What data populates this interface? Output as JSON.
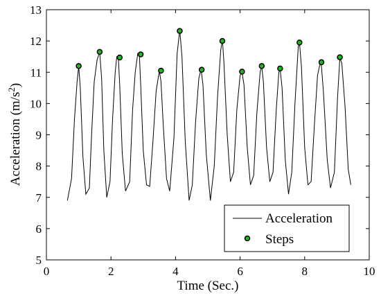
{
  "chart_data": {
    "type": "line",
    "xlabel": "Time (Sec.)",
    "ylabel_main": "Acceleration (m/s",
    "ylabel_sup": "2",
    "ylabel_close": ")",
    "xlim": [
      0,
      10
    ],
    "ylim": [
      5,
      13
    ],
    "xticks": [
      0,
      2,
      4,
      6,
      8,
      10
    ],
    "yticks": [
      5,
      6,
      7,
      8,
      9,
      10,
      11,
      12,
      13
    ],
    "grid": false,
    "legend_position": "bottom-right",
    "colors": {
      "line": "#000000",
      "marker_fill": "#1fb81f",
      "marker_edge": "#000000"
    },
    "series": [
      {
        "name": "Acceleration",
        "kind": "line",
        "x": [
          0.65,
          0.78,
          0.87,
          0.95,
          1.0,
          1.05,
          1.13,
          1.22,
          1.33,
          1.4,
          1.48,
          1.57,
          1.65,
          1.71,
          1.78,
          1.87,
          1.97,
          2.05,
          2.13,
          2.18,
          2.23,
          2.27,
          2.35,
          2.45,
          2.58,
          2.67,
          2.75,
          2.83,
          2.88,
          2.92,
          3.0,
          3.1,
          3.2,
          3.3,
          3.4,
          3.5,
          3.55,
          3.62,
          3.72,
          3.82,
          3.95,
          4.05,
          4.13,
          4.2,
          4.3,
          4.42,
          4.52,
          4.62,
          4.72,
          4.79,
          4.85,
          4.95,
          5.08,
          5.2,
          5.3,
          5.4,
          5.45,
          5.5,
          5.6,
          5.7,
          5.8,
          5.9,
          6.0,
          6.06,
          6.12,
          6.22,
          6.32,
          6.42,
          6.52,
          6.62,
          6.67,
          6.72,
          6.82,
          6.92,
          7.02,
          7.12,
          7.2,
          7.24,
          7.3,
          7.4,
          7.5,
          7.6,
          7.7,
          7.8,
          7.84,
          7.9,
          8.0,
          8.1,
          8.2,
          8.3,
          8.4,
          8.48,
          8.52,
          8.58,
          8.7,
          8.8,
          8.92,
          9.02,
          9.09,
          9.15,
          9.25,
          9.35,
          9.43
        ],
        "y": [
          6.9,
          7.6,
          9.5,
          10.7,
          11.2,
          10.5,
          8.3,
          7.1,
          7.3,
          9.0,
          10.7,
          11.4,
          11.65,
          10.8,
          8.5,
          7.0,
          7.5,
          9.5,
          11.0,
          11.5,
          11.45,
          10.6,
          8.4,
          7.2,
          7.5,
          9.8,
          11.0,
          11.6,
          11.55,
          10.6,
          8.5,
          7.4,
          7.35,
          8.8,
          10.4,
          11.05,
          10.7,
          9.3,
          7.6,
          7.2,
          8.9,
          11.6,
          12.35,
          11.5,
          8.8,
          6.9,
          7.4,
          9.4,
          10.8,
          11.1,
          10.6,
          8.4,
          6.9,
          8.0,
          10.2,
          11.7,
          12.05,
          11.3,
          9.0,
          7.5,
          7.8,
          9.8,
          10.9,
          11.0,
          10.6,
          8.6,
          7.4,
          7.7,
          9.7,
          11.0,
          11.2,
          10.7,
          8.6,
          7.5,
          7.8,
          9.8,
          11.0,
          11.1,
          10.5,
          8.2,
          7.1,
          7.8,
          10.0,
          11.8,
          11.95,
          11.2,
          8.6,
          7.4,
          7.5,
          9.3,
          10.9,
          11.3,
          11.2,
          10.4,
          8.2,
          7.3,
          7.8,
          10.2,
          11.45,
          11.3,
          9.9,
          7.9,
          7.4
        ]
      },
      {
        "name": "Steps",
        "kind": "scatter",
        "x": [
          1.0,
          1.65,
          2.27,
          2.92,
          3.55,
          4.13,
          4.81,
          5.45,
          6.06,
          6.67,
          7.24,
          7.84,
          8.52,
          9.09
        ],
        "y": [
          11.2,
          11.65,
          11.47,
          11.57,
          11.05,
          12.32,
          11.08,
          12.0,
          11.02,
          11.2,
          11.12,
          11.95,
          11.32,
          11.48
        ]
      }
    ]
  }
}
